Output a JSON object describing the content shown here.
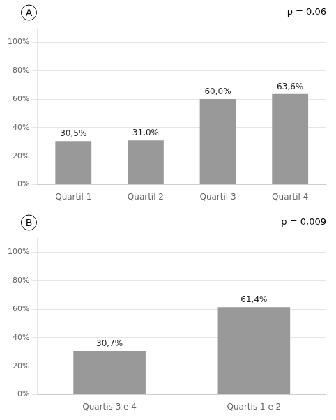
{
  "chart_data": [
    {
      "type": "bar",
      "annotations": [
        "A",
        "p = 0,06"
      ],
      "categories": [
        "Quartil 1",
        "Quartil 2",
        "Quartil 3",
        "Quartil 4"
      ],
      "values": [
        30.5,
        31.0,
        60.0,
        63.6
      ],
      "value_labels": [
        "30,5%",
        "31,0%",
        "60,0%",
        "63,6%"
      ],
      "data_labels": true,
      "color": "#999999",
      "ylim": [
        0,
        110
      ],
      "yticks": [
        {
          "value": 0,
          "label": "0%"
        },
        {
          "value": 20,
          "label": "20%"
        },
        {
          "value": 40,
          "label": "40%"
        },
        {
          "value": 60,
          "label": "60%"
        },
        {
          "value": 80,
          "label": "80%"
        },
        {
          "value": 100,
          "label": "100%"
        }
      ],
      "grid": true
    },
    {
      "type": "bar",
      "annotations": [
        "B",
        "p = 0,009"
      ],
      "categories": [
        "Quartis 3 e 4",
        "Quartis 1 e 2"
      ],
      "values": [
        30.7,
        61.4
      ],
      "value_labels": [
        "30,7%",
        "61,4%"
      ],
      "data_labels": true,
      "color": "#999999",
      "ylim": [
        0,
        110
      ],
      "yticks": [
        {
          "value": 0,
          "label": "0%"
        },
        {
          "value": 20,
          "label": "20%"
        },
        {
          "value": 40,
          "label": "40%"
        },
        {
          "value": 60,
          "label": "60%"
        },
        {
          "value": 80,
          "label": "80%"
        },
        {
          "value": 100,
          "label": "100%"
        }
      ],
      "grid": true
    }
  ]
}
